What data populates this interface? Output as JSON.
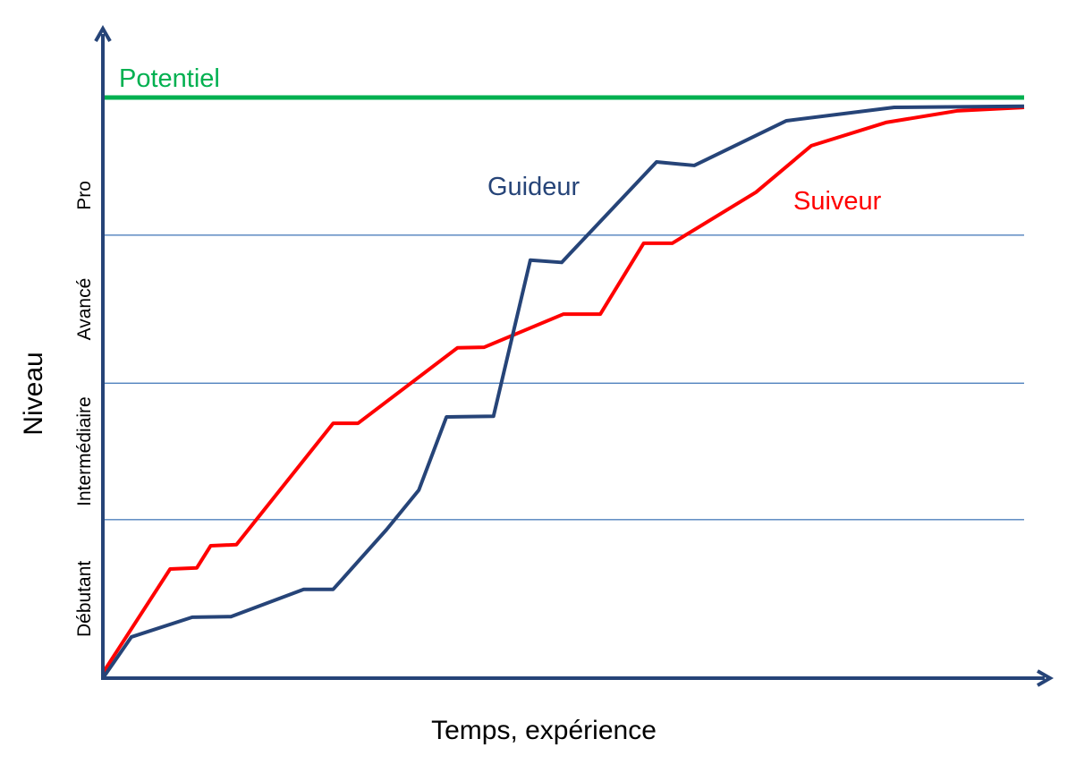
{
  "chart_data": {
    "type": "line",
    "title": "",
    "xlabel": "Temps, expérience",
    "ylabel": "Niveau",
    "xlim": [
      0,
      100
    ],
    "ylim": [
      0,
      100
    ],
    "grid": false,
    "levels": [
      {
        "label": "Débutant",
        "from": 0,
        "to": 27.3
      },
      {
        "label": "Intermédiaire",
        "from": 27.3,
        "to": 50.8
      },
      {
        "label": "Avancé",
        "from": 50.8,
        "to": 76.3
      },
      {
        "label": "Pro",
        "from": 76.3,
        "to": 100
      }
    ],
    "potential": {
      "name": "Potentiel",
      "value": 100,
      "color": "#00B050"
    },
    "series": [
      {
        "name": "Guideur",
        "color": "#264478",
        "x": [
          0,
          3.1,
          9.7,
          13.9,
          21.8,
          25.0,
          30.8,
          34.3,
          37.3,
          42.4,
          46.4,
          49.8,
          60.1,
          64.2,
          74.2,
          85.9,
          100
        ],
        "y": [
          0,
          7.1,
          10.5,
          10.6,
          15.3,
          15.3,
          25.6,
          32.4,
          45.0,
          45.1,
          72.0,
          71.6,
          88.9,
          88.3,
          96.0,
          98.3,
          98.5
        ]
      },
      {
        "name": "Suiveur",
        "color": "#FF0000",
        "x": [
          0,
          7.3,
          10.2,
          11.7,
          14.5,
          25.0,
          27.7,
          38.5,
          41.4,
          50.0,
          54.0,
          58.7,
          61.8,
          70.9,
          76.9,
          85.0,
          92.7,
          100
        ],
        "y": [
          0.9,
          18.8,
          19.0,
          22.8,
          23.0,
          43.9,
          43.9,
          56.9,
          57.0,
          62.7,
          62.7,
          74.9,
          74.9,
          83.7,
          91.7,
          95.7,
          97.7,
          98.3
        ]
      }
    ],
    "axis_color": "#264478",
    "band_line_color": "#4F81BD"
  }
}
